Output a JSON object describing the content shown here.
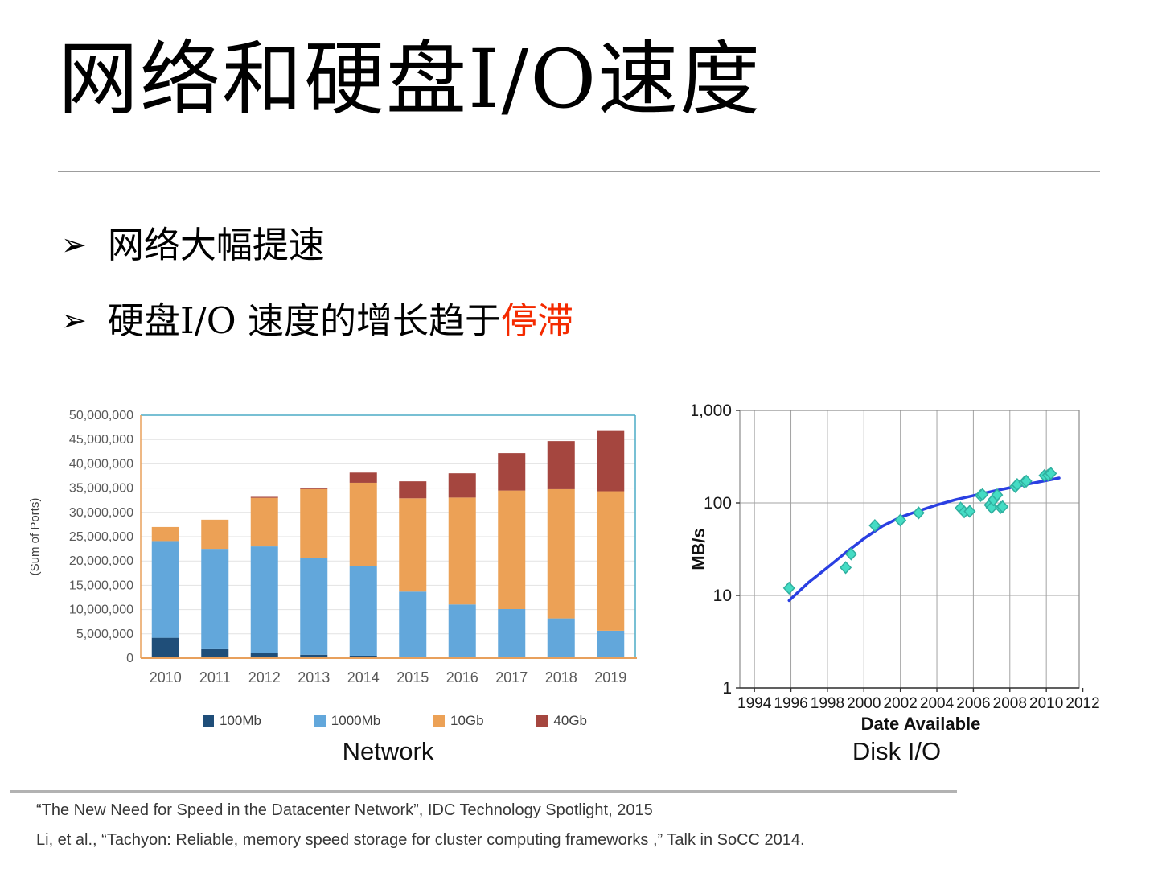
{
  "slide": {
    "title": "网络和硬盘I/O速度",
    "bullets": [
      {
        "marker": "➢",
        "text": "网络大幅提速",
        "highlight": ""
      },
      {
        "marker": "➢",
        "text": "硬盘I/O 速度的增长趋于",
        "highlight": "停滞"
      }
    ],
    "highlight_color": "#f42a00"
  },
  "chart_data": [
    {
      "type": "bar",
      "stacked": true,
      "title": "Network",
      "ylabel": "(Sum of Ports)",
      "xlabel": "",
      "categories": [
        "2010",
        "2011",
        "2012",
        "2013",
        "2014",
        "2015",
        "2016",
        "2017",
        "2018",
        "2019"
      ],
      "series": [
        {
          "name": "100Mb",
          "color": "#1F4E79",
          "values": [
            4200000,
            2000000,
            1100000,
            700000,
            500000,
            200000,
            150000,
            100000,
            80000,
            50000
          ]
        },
        {
          "name": "1000Mb",
          "color": "#62A7DB",
          "values": [
            19900000,
            20500000,
            21900000,
            19900000,
            18400000,
            13500000,
            10900000,
            10000000,
            8100000,
            5600000
          ]
        },
        {
          "name": "10Gb",
          "color": "#ECA156",
          "values": [
            2900000,
            6000000,
            10000000,
            14200000,
            17200000,
            19200000,
            22000000,
            24400000,
            26600000,
            28700000
          ]
        },
        {
          "name": "40Gb",
          "color": "#A5463F",
          "values": [
            0,
            0,
            200000,
            300000,
            2100000,
            3500000,
            5000000,
            7700000,
            9900000,
            12400000
          ]
        }
      ],
      "ylim": [
        0,
        50000000
      ],
      "ytick_step": 5000000,
      "grid": true,
      "legend_position": "bottom",
      "border_top_right_color": "#4BACC6",
      "border_left_bottom_color": "#E8A05C",
      "gridline_color": "#E2E2E2",
      "tick_color": "#595959"
    },
    {
      "type": "scatter",
      "title": "Disk I/O",
      "xlabel": "Date Available",
      "ylabel": "MB/s",
      "yscale": "log",
      "xlim": [
        1993.2,
        2011.8
      ],
      "ylim": [
        1,
        1000
      ],
      "xticks": [
        1994,
        1996,
        1998,
        2000,
        2002,
        2004,
        2006,
        2008,
        2010,
        2012
      ],
      "yticks": [
        1,
        10,
        100,
        1000
      ],
      "grid_years": [
        1994,
        1996,
        1998,
        2000,
        2002,
        2004,
        2006,
        2008,
        2010
      ],
      "grid": true,
      "points": [
        [
          1995.9,
          12
        ],
        [
          1999.0,
          20
        ],
        [
          1999.3,
          28
        ],
        [
          2000.6,
          57
        ],
        [
          2002.0,
          65
        ],
        [
          2003.0,
          78
        ],
        [
          2005.3,
          88
        ],
        [
          2005.5,
          80
        ],
        [
          2005.8,
          81
        ],
        [
          2006.4,
          120
        ],
        [
          2006.5,
          123
        ],
        [
          2006.9,
          95
        ],
        [
          2007.0,
          89
        ],
        [
          2007.1,
          108
        ],
        [
          2007.3,
          122
        ],
        [
          2007.5,
          89
        ],
        [
          2007.6,
          91
        ],
        [
          2008.3,
          150
        ],
        [
          2008.4,
          158
        ],
        [
          2008.8,
          168
        ],
        [
          2008.9,
          172
        ],
        [
          2009.9,
          198
        ],
        [
          2010.1,
          200
        ],
        [
          2010.25,
          208
        ]
      ],
      "trend": [
        [
          1995.9,
          8.8
        ],
        [
          1997,
          14
        ],
        [
          1998,
          20
        ],
        [
          1999,
          29
        ],
        [
          2000,
          41
        ],
        [
          2001,
          56
        ],
        [
          2002,
          70
        ],
        [
          2003,
          82
        ],
        [
          2004,
          95
        ],
        [
          2005,
          108
        ],
        [
          2006,
          120
        ],
        [
          2007,
          133
        ],
        [
          2008,
          146
        ],
        [
          2009,
          160
        ],
        [
          2010,
          175
        ],
        [
          2010.7,
          186
        ]
      ],
      "point_color": "#44DCC4",
      "point_edge_color": "#2FAF9F",
      "line_color": "#2A3FE2",
      "gridline_color": "#A3A3A3",
      "axis_color": "#333333"
    }
  ],
  "footer": {
    "lines": [
      "“The New Need for Speed in the Datacenter Network”, IDC Technology Spotlight, 2015",
      "Li, et al., “Tachyon: Reliable, memory speed storage for cluster computing frameworks ,” Talk in SoCC 2014."
    ]
  }
}
